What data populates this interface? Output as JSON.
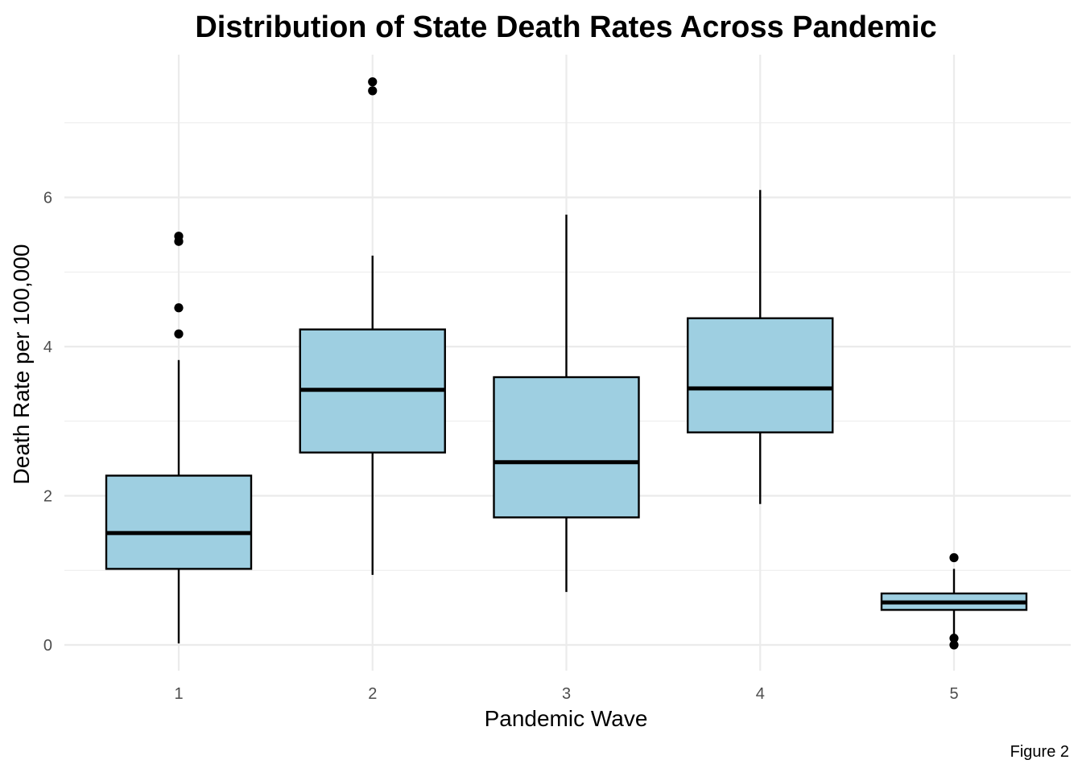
{
  "chart_data": {
    "type": "box",
    "title": "Distribution of State Death Rates Across Pandemic",
    "xlabel": "Pandemic Wave",
    "ylabel": "Death Rate per 100,000",
    "caption": "Figure 2",
    "categories": [
      "1",
      "2",
      "3",
      "4",
      "5"
    ],
    "ylim": [
      -0.35,
      7.95
    ],
    "y_ticks": [
      0,
      2,
      4,
      6
    ],
    "y_tick_labels": [
      "0",
      "2",
      "4",
      "6"
    ],
    "y_minor_ticks": [
      1,
      3,
      5,
      7
    ],
    "grid": true,
    "legend": "none",
    "boxes": [
      {
        "category": "1",
        "whisker_low": 0.02,
        "q1": 1.02,
        "median": 1.5,
        "q3": 2.27,
        "whisker_high": 3.82,
        "outliers": [
          4.17,
          4.52,
          5.41,
          5.48
        ]
      },
      {
        "category": "2",
        "whisker_low": 0.94,
        "q1": 2.58,
        "median": 3.42,
        "q3": 4.23,
        "whisker_high": 5.22,
        "outliers": [
          7.43,
          7.55
        ]
      },
      {
        "category": "3",
        "whisker_low": 0.71,
        "q1": 1.71,
        "median": 2.45,
        "q3": 3.59,
        "whisker_high": 5.77,
        "outliers": []
      },
      {
        "category": "4",
        "whisker_low": 1.89,
        "q1": 2.85,
        "median": 3.44,
        "q3": 4.38,
        "whisker_high": 6.1,
        "outliers": []
      },
      {
        "category": "5",
        "whisker_low": 0.09,
        "q1": 0.47,
        "median": 0.57,
        "q3": 0.69,
        "whisker_high": 1.02,
        "outliers": [
          0.0,
          0.09,
          1.17
        ]
      }
    ],
    "colors": {
      "box_fill": "#9ecfe1",
      "box_stroke": "#000000",
      "grid": "#ebebeb",
      "background": "#ffffff"
    }
  }
}
